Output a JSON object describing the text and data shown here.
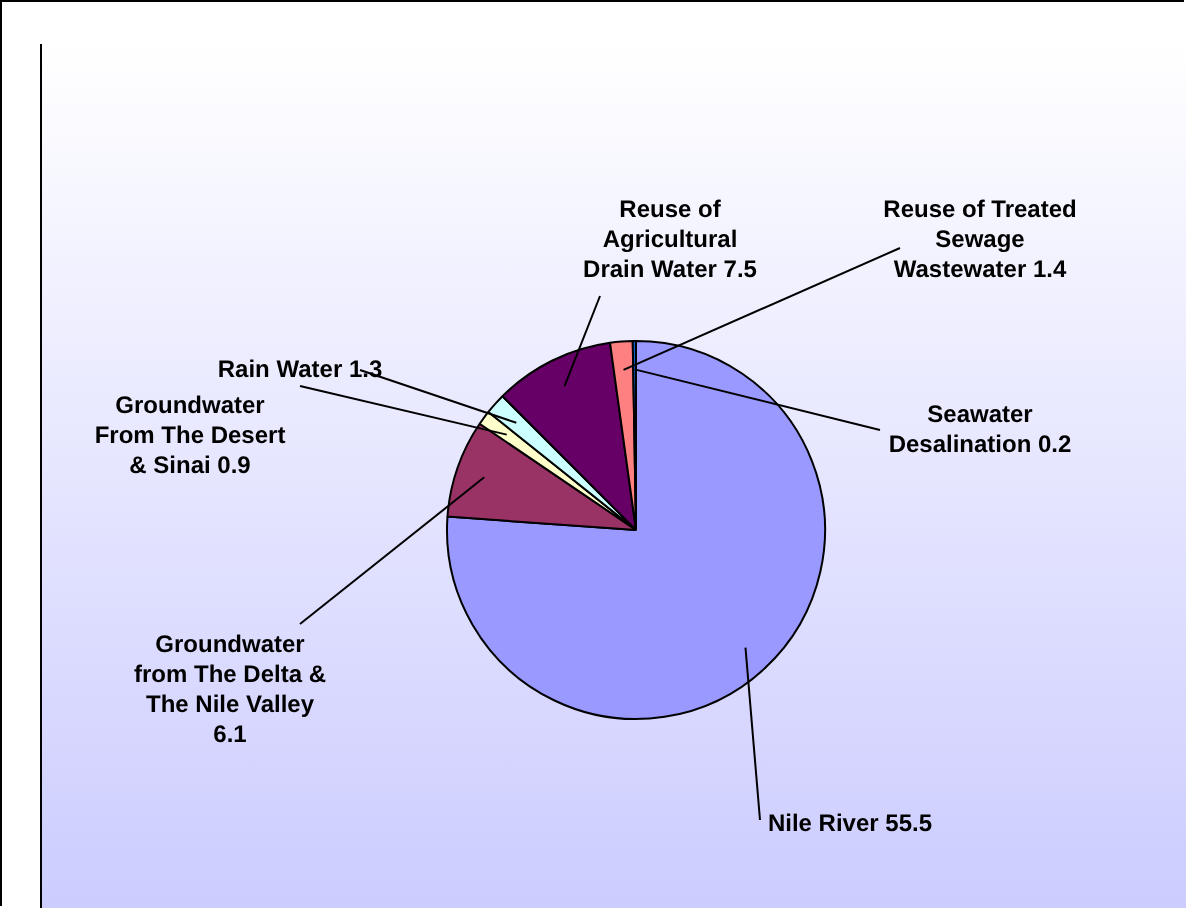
{
  "chart_data": {
    "type": "pie",
    "categories": [
      "Nile River 55.5",
      "Groundwater from The Delta & The Nile Valley 6.1",
      "Groundwater From The Desert & Sinai 0.9",
      "Rain Water 1.3",
      "Reuse of Agricultural Drain Water 7.5",
      "Reuse of Treated Sewage Wastewater 1.4",
      "Seawater Desalination 0.2"
    ],
    "values": [
      55.5,
      6.1,
      0.9,
      1.3,
      7.5,
      1.4,
      0.2
    ],
    "colors": [
      "#9999ff",
      "#993366",
      "#ffffcc",
      "#ccffff",
      "#660066",
      "#ff8080",
      "#0066cc"
    ],
    "legend": false
  }
}
